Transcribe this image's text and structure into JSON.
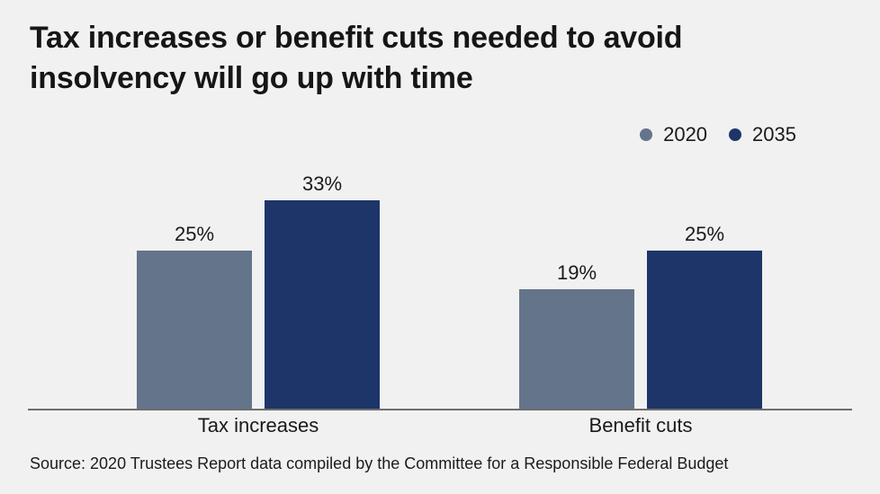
{
  "page": {
    "background": "#f0f1f0"
  },
  "header": {
    "title": "Tax increases or benefit cuts needed to avoid insolvency will go up with time"
  },
  "legend": {
    "items": [
      {
        "label": "2020",
        "color": "#64748a"
      },
      {
        "label": "2035",
        "color": "#1d3568"
      }
    ]
  },
  "footer": {
    "source": "Source: 2020 Trustees Report data compiled by the Committee for a Responsible Federal Budget"
  },
  "chart_data": {
    "type": "bar",
    "title": "Tax increases or benefit cuts needed to avoid insolvency will go up with time",
    "categories": [
      "Tax increases",
      "Benefit cuts"
    ],
    "series": [
      {
        "name": "2020",
        "color": "#64748a",
        "values": [
          25,
          19
        ]
      },
      {
        "name": "2035",
        "color": "#1d3568",
        "values": [
          33,
          25
        ]
      }
    ],
    "value_suffix": "%",
    "data_labels": true,
    "xlabel": "",
    "ylabel": "",
    "ylim": [
      0,
      35
    ],
    "grid": false,
    "legend_position": "top-right",
    "axis_line_color": "#6e6e6e"
  }
}
